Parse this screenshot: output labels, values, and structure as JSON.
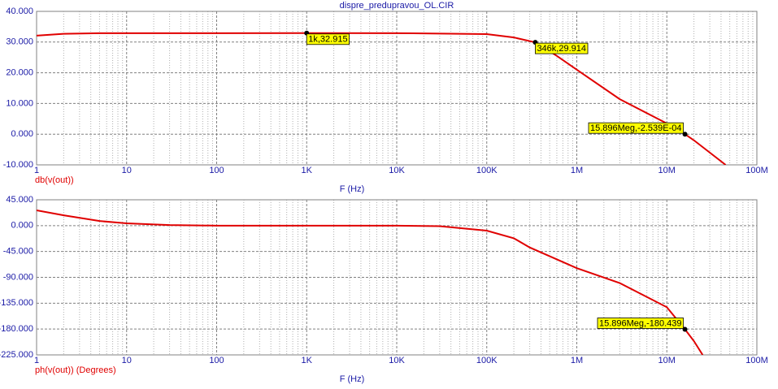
{
  "chart_data": [
    {
      "type": "line",
      "title": "dispre_predupravou_OL.CIR",
      "xlabel": "F (Hz)",
      "log_x": true,
      "grid": true,
      "x": [
        1,
        2,
        5,
        10,
        100,
        1000,
        10000,
        100000,
        200000,
        346000,
        600000,
        1000000,
        3000000,
        10000000,
        15896000,
        20000000,
        30000000,
        45000000
      ],
      "series": [
        {
          "name": "db(v(out))",
          "color": "#e00000",
          "values": [
            32.1,
            32.7,
            32.9,
            32.9,
            32.9,
            32.915,
            32.9,
            32.6,
            31.5,
            29.914,
            25.5,
            21,
            11.4,
            3.5,
            -0.0002539,
            -2,
            -6,
            -10
          ]
        }
      ],
      "xlim": [
        1,
        100000000
      ],
      "xticks": [
        {
          "value": 1,
          "label": "1"
        },
        {
          "value": 10,
          "label": "10"
        },
        {
          "value": 100,
          "label": "100"
        },
        {
          "value": 1000,
          "label": "1K"
        },
        {
          "value": 10000,
          "label": "10K"
        },
        {
          "value": 100000,
          "label": "100K"
        },
        {
          "value": 1000000,
          "label": "1M"
        },
        {
          "value": 10000000,
          "label": "10M"
        },
        {
          "value": 100000000,
          "label": "100M"
        }
      ],
      "ylim": [
        -10,
        40
      ],
      "yticks": [
        {
          "value": -10,
          "label": "-10.000"
        },
        {
          "value": 0,
          "label": "0.000"
        },
        {
          "value": 10,
          "label": "10.000"
        },
        {
          "value": 20,
          "label": "20.000"
        },
        {
          "value": 30,
          "label": "30.000"
        },
        {
          "value": 40,
          "label": "40.000"
        }
      ],
      "annotations": [
        {
          "x": 1000,
          "y": 32.915,
          "text": "1k,32.915"
        },
        {
          "x": 346000,
          "y": 29.914,
          "text": "346k,29.914"
        },
        {
          "x": 15896000,
          "y": -0.0002539,
          "text": "15.896Meg,-2.539E-04"
        }
      ]
    },
    {
      "type": "line",
      "xlabel": "F (Hz)",
      "log_x": true,
      "grid": true,
      "x": [
        1,
        2,
        5,
        10,
        30,
        100,
        1000,
        10000,
        30000,
        100000,
        200000,
        300000,
        1000000,
        3000000,
        10000000,
        15896000,
        20000000,
        25000000
      ],
      "series": [
        {
          "name": "ph(v(out)) (Degrees)",
          "color": "#e00000",
          "values": [
            26.6,
            18,
            8,
            4,
            1,
            0,
            0,
            0,
            -1,
            -8.7,
            -22,
            -38,
            -74,
            -100,
            -142,
            -180.439,
            -201,
            -225
          ]
        }
      ],
      "xlim": [
        1,
        100000000
      ],
      "xticks": [
        {
          "value": 1,
          "label": "1"
        },
        {
          "value": 10,
          "label": "10"
        },
        {
          "value": 100,
          "label": "100"
        },
        {
          "value": 1000,
          "label": "1K"
        },
        {
          "value": 10000,
          "label": "10K"
        },
        {
          "value": 100000,
          "label": "100K"
        },
        {
          "value": 1000000,
          "label": "1M"
        },
        {
          "value": 10000000,
          "label": "10M"
        },
        {
          "value": 100000000,
          "label": "100M"
        }
      ],
      "ylim": [
        -225,
        45
      ],
      "yticks": [
        {
          "value": -225,
          "label": "-225.000"
        },
        {
          "value": -180,
          "label": "-180.000"
        },
        {
          "value": -135,
          "label": "-135.000"
        },
        {
          "value": -90,
          "label": "-90.000"
        },
        {
          "value": -45,
          "label": "-45.000"
        },
        {
          "value": 0,
          "label": "0.000"
        },
        {
          "value": 45,
          "label": "45.000"
        }
      ],
      "annotations": [
        {
          "x": 15896000,
          "y": -180.439,
          "text": "15.896Meg,-180.439"
        }
      ]
    }
  ]
}
